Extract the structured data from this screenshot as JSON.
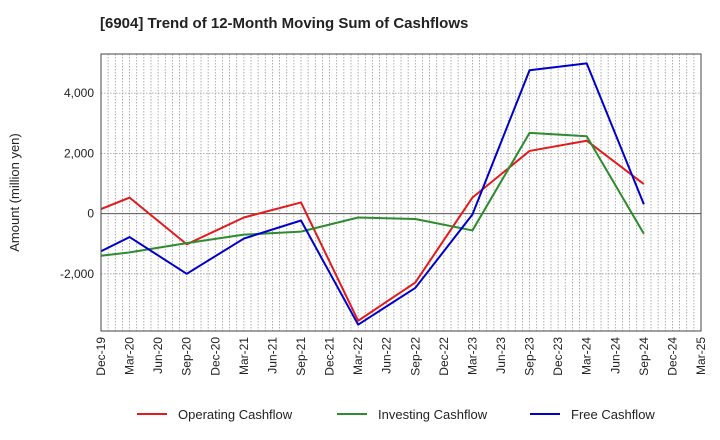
{
  "chart_data": {
    "type": "line",
    "title": "[6904]  Trend of 12-Month Moving Sum of Cashflows",
    "ylabel": "Amount (million yen)",
    "xlabel": "",
    "categories": [
      "Dec-19",
      "Mar-20",
      "Jun-20",
      "Sep-20",
      "Dec-20",
      "Mar-21",
      "Jun-21",
      "Sep-21",
      "Dec-21",
      "Mar-22",
      "Jun-22",
      "Sep-22",
      "Dec-22",
      "Mar-23",
      "Jun-23",
      "Sep-23",
      "Dec-23",
      "Mar-24",
      "Jun-24",
      "Sep-24",
      "Dec-24",
      "Mar-25"
    ],
    "ylim": [
      -3900,
      5300
    ],
    "yticks": [
      -2000,
      0,
      2000,
      4000
    ],
    "ytick_labels": [
      "-2,000",
      "0",
      "2,000",
      "4,000"
    ],
    "grid": true,
    "legend_position": "bottom",
    "series": [
      {
        "name": "Operating Cashflow",
        "color": "#e41a1c",
        "points": [
          [
            "Dec-19",
            150
          ],
          [
            "Mar-20",
            530
          ],
          [
            "Sep-20",
            -1020
          ],
          [
            "Mar-21",
            -130
          ],
          [
            "Sep-21",
            370
          ],
          [
            "Mar-22",
            -3560
          ],
          [
            "Sep-22",
            -2290
          ],
          [
            "Mar-23",
            530
          ],
          [
            "Sep-23",
            2080
          ],
          [
            "Mar-24",
            2420
          ],
          [
            "Sep-24",
            980
          ]
        ]
      },
      {
        "name": "Investing Cashflow",
        "color": "#2e8b2e",
        "points": [
          [
            "Dec-19",
            -1400
          ],
          [
            "Mar-20",
            -1290
          ],
          [
            "Sep-20",
            -980
          ],
          [
            "Mar-21",
            -700
          ],
          [
            "Sep-21",
            -600
          ],
          [
            "Mar-22",
            -130
          ],
          [
            "Sep-22",
            -180
          ],
          [
            "Mar-23",
            -560
          ],
          [
            "Sep-23",
            2680
          ],
          [
            "Mar-24",
            2570
          ],
          [
            "Sep-24",
            -670
          ]
        ]
      },
      {
        "name": "Free Cashflow",
        "color": "#0000cc",
        "points": [
          [
            "Dec-19",
            -1250
          ],
          [
            "Mar-20",
            -780
          ],
          [
            "Sep-20",
            -2000
          ],
          [
            "Mar-21",
            -830
          ],
          [
            "Sep-21",
            -230
          ],
          [
            "Mar-22",
            -3690
          ],
          [
            "Sep-22",
            -2470
          ],
          [
            "Mar-23",
            -30
          ],
          [
            "Sep-23",
            4760
          ],
          [
            "Mar-24",
            4990
          ],
          [
            "Sep-24",
            310
          ]
        ]
      }
    ]
  }
}
